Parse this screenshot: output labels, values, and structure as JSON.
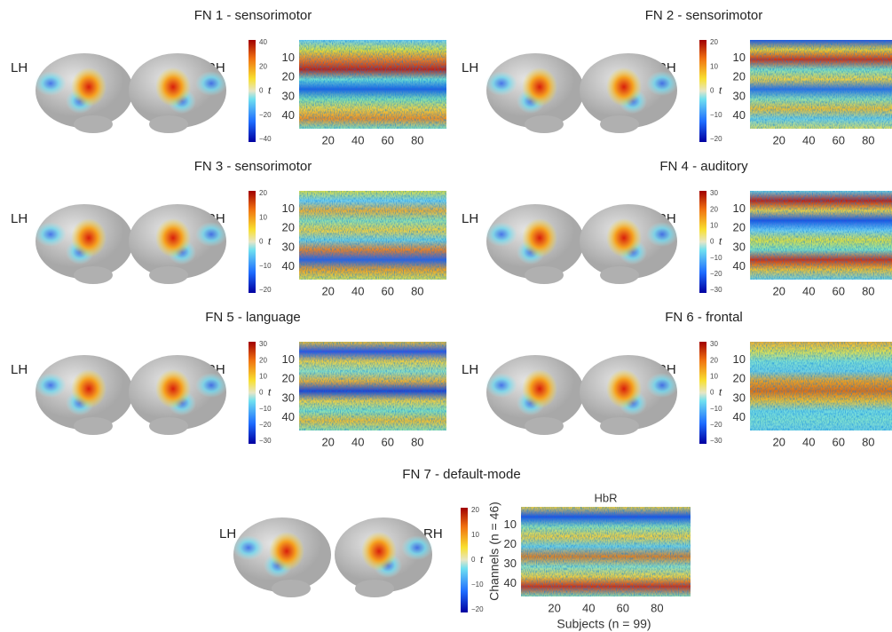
{
  "panels": [
    {
      "title": "FN 1 - sensorimotor",
      "hemispheres": [
        "LH",
        "RH"
      ],
      "colorbar": {
        "label": "t",
        "ticks": [
          "40",
          "20",
          "0",
          "−20",
          "−40"
        ]
      },
      "heatmap": {
        "yticks": [
          "10",
          "20",
          "30",
          "40"
        ],
        "xticks": [
          "20",
          "40",
          "60",
          "80"
        ]
      }
    },
    {
      "title": "FN 2 - sensorimotor",
      "hemispheres": [
        "LH",
        "RH"
      ],
      "colorbar": {
        "label": "t",
        "ticks": [
          "20",
          "10",
          "0",
          "−10",
          "−20"
        ]
      },
      "heatmap": {
        "yticks": [
          "10",
          "20",
          "30",
          "40"
        ],
        "xticks": [
          "20",
          "40",
          "60",
          "80"
        ]
      }
    },
    {
      "title": "FN 3 - sensorimotor",
      "hemispheres": [
        "LH",
        "RH"
      ],
      "colorbar": {
        "label": "t",
        "ticks": [
          "20",
          "10",
          "0",
          "−10",
          "−20"
        ]
      },
      "heatmap": {
        "yticks": [
          "10",
          "20",
          "30",
          "40"
        ],
        "xticks": [
          "20",
          "40",
          "60",
          "80"
        ]
      }
    },
    {
      "title": "FN 4 - auditory",
      "hemispheres": [
        "LH",
        "RH"
      ],
      "colorbar": {
        "label": "t",
        "ticks": [
          "30",
          "20",
          "10",
          "0",
          "−10",
          "−20",
          "−30"
        ]
      },
      "heatmap": {
        "yticks": [
          "10",
          "20",
          "30",
          "40"
        ],
        "xticks": [
          "20",
          "40",
          "60",
          "80"
        ]
      }
    },
    {
      "title": "FN 5 - language",
      "hemispheres": [
        "LH",
        "RH"
      ],
      "colorbar": {
        "label": "t",
        "ticks": [
          "30",
          "20",
          "10",
          "0",
          "−10",
          "−20",
          "−30"
        ]
      },
      "heatmap": {
        "yticks": [
          "10",
          "20",
          "30",
          "40"
        ],
        "xticks": [
          "20",
          "40",
          "60",
          "80"
        ]
      }
    },
    {
      "title": "FN 6 - frontal",
      "hemispheres": [
        "LH",
        "RH"
      ],
      "colorbar": {
        "label": "t",
        "ticks": [
          "30",
          "20",
          "10",
          "0",
          "−10",
          "−20",
          "−30"
        ]
      },
      "heatmap": {
        "yticks": [
          "10",
          "20",
          "30",
          "40"
        ],
        "xticks": [
          "20",
          "40",
          "60",
          "80"
        ]
      }
    },
    {
      "title": "FN 7 - default-mode",
      "hemispheres": [
        "LH",
        "RH"
      ],
      "colorbar": {
        "label": "t",
        "ticks": [
          "20",
          "10",
          "0",
          "−10",
          "−20"
        ]
      },
      "heatmap": {
        "title": "HbR",
        "ylabel": "Channels (n = 46)",
        "xlabel": "Subjects (n = 99)",
        "yticks": [
          "10",
          "20",
          "30",
          "40"
        ],
        "xticks": [
          "20",
          "40",
          "60",
          "80"
        ]
      }
    }
  ]
}
